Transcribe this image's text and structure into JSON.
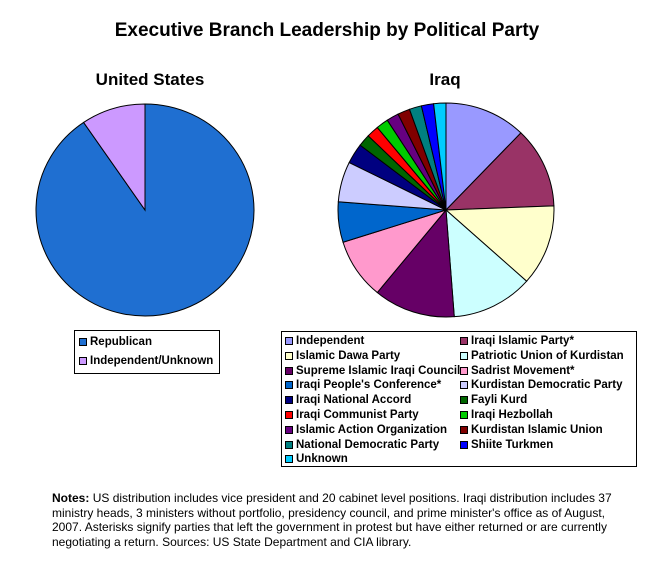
{
  "page": {
    "title": "Executive Branch Leadership by Political Party",
    "notes_label": "Notes:",
    "notes_text": "US distribution includes vice president and 20 cabinet level positions. Iraqi distribution includes 37 ministry heads, 3 ministers without portfolio, presidency council, and prime minister's office as of August, 2007. Asterisks signify parties that left the government in protest but have either returned or are currently negotiating a return. Sources: US State Department and CIA library."
  },
  "chart_data": [
    {
      "type": "pie",
      "title": "United States",
      "legend_position": "bottom",
      "series": [
        {
          "name": "Republican",
          "value": 19,
          "color": "#1f6fd1"
        },
        {
          "name": "Independent/Unknown",
          "value": 2,
          "color": "#cc99ff"
        }
      ]
    },
    {
      "type": "pie",
      "title": "Iraq",
      "legend_position": "bottom",
      "series": [
        {
          "name": "Independent",
          "value": 4,
          "color": "#9999ff"
        },
        {
          "name": "Iraqi Islamic Party*",
          "value": 4,
          "color": "#993366"
        },
        {
          "name": "Islamic Dawa Party",
          "value": 4,
          "color": "#ffffcc"
        },
        {
          "name": "Patriotic Union of Kurdistan",
          "value": 4,
          "color": "#ccffff"
        },
        {
          "name": "Supreme Islamic Iraqi Council",
          "value": 4,
          "color": "#660066"
        },
        {
          "name": "Sadrist Movement*",
          "value": 3,
          "color": "#ff99cc"
        },
        {
          "name": "Iraqi People's Conference*",
          "value": 2,
          "color": "#0066cc"
        },
        {
          "name": "Kurdistan Democratic Party",
          "value": 2,
          "color": "#ccccff"
        },
        {
          "name": "Iraqi National Accord",
          "value": 1,
          "color": "#000080"
        },
        {
          "name": "Fayli Kurd",
          "value": 0.6,
          "color": "#006600"
        },
        {
          "name": "Iraqi Communist Party",
          "value": 0.6,
          "color": "#ff0000"
        },
        {
          "name": "Iraqi Hezbollah",
          "value": 0.6,
          "color": "#00cc00"
        },
        {
          "name": "Islamic Action Organization",
          "value": 0.6,
          "color": "#660080"
        },
        {
          "name": "Kurdistan Islamic Union",
          "value": 0.6,
          "color": "#800000"
        },
        {
          "name": "National Democratic Party",
          "value": 0.6,
          "color": "#008080"
        },
        {
          "name": "Shiite Turkmen",
          "value": 0.6,
          "color": "#0000ff"
        },
        {
          "name": "Unknown",
          "value": 0.6,
          "color": "#00ccff"
        }
      ]
    }
  ]
}
